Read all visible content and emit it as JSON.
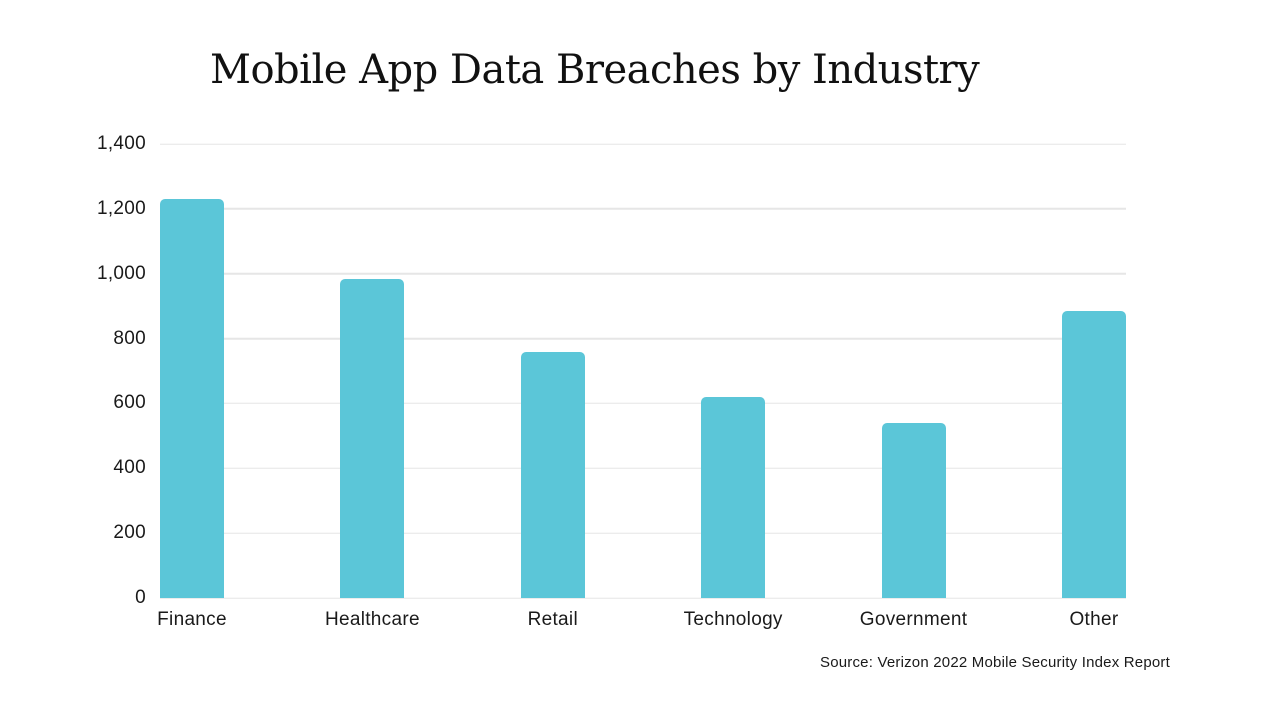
{
  "title": "Mobile App Data Breaches by Industry",
  "source_note": "Source: Verizon 2022 Mobile Security Index Report",
  "colors": {
    "bar": "#5BC6D8",
    "gridline": "#E6E6E6",
    "text": "#1A1A1A",
    "title_text": "#111111",
    "background": "#FFFFFF"
  },
  "chart_data": {
    "type": "bar",
    "title": "Mobile App Data Breaches by Industry",
    "categories": [
      "Finance",
      "Healthcare",
      "Retail",
      "Technology",
      "Government",
      "Other"
    ],
    "values": [
      1230,
      985,
      760,
      620,
      540,
      885
    ],
    "xlabel": "",
    "ylabel": "",
    "ylim": [
      0,
      1400
    ],
    "yticks": [
      {
        "value": 0,
        "label": "0"
      },
      {
        "value": 200,
        "label": "200"
      },
      {
        "value": 400,
        "label": "400"
      },
      {
        "value": 600,
        "label": "600"
      },
      {
        "value": 800,
        "label": "800"
      },
      {
        "value": 1000,
        "label": "1,000"
      },
      {
        "value": 1200,
        "label": "1,200"
      },
      {
        "value": 1400,
        "label": "1,400"
      }
    ],
    "grid": "horizontal",
    "legend": "none",
    "bar_color": "#5BC6D8",
    "source": "Source: Verizon 2022 Mobile Security Index Report"
  }
}
